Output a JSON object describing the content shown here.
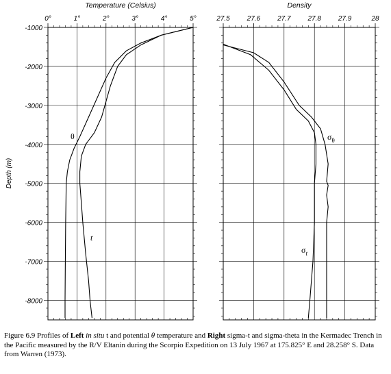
{
  "chart_data": [
    {
      "type": "line",
      "title": "Temperature (Celsius)",
      "xlabel": "Temperature (Celsius)",
      "ylabel": "Depth (m)",
      "xlim": [
        0,
        5
      ],
      "ylim": [
        -8500,
        -1000
      ],
      "x_ticks": [
        "0°",
        "1°",
        "2°",
        "3°",
        "4°",
        "5°"
      ],
      "y_ticks": [
        "-1000",
        "-2000",
        "-3000",
        "-4000",
        "-5000",
        "-6000",
        "-7000",
        "-8000"
      ],
      "series": [
        {
          "name": "t",
          "points": [
            [
              5.0,
              -1000
            ],
            [
              3.9,
              -1200
            ],
            [
              3.2,
              -1450
            ],
            [
              2.7,
              -1700
            ],
            [
              2.4,
              -2000
            ],
            [
              2.15,
              -2500
            ],
            [
              2.0,
              -2900
            ],
            [
              1.85,
              -3300
            ],
            [
              1.6,
              -3700
            ],
            [
              1.3,
              -4000
            ],
            [
              1.15,
              -4300
            ],
            [
              1.1,
              -4700
            ],
            [
              1.1,
              -5000
            ],
            [
              1.15,
              -5500
            ],
            [
              1.2,
              -6000
            ],
            [
              1.3,
              -6800
            ],
            [
              1.4,
              -7500
            ],
            [
              1.45,
              -8000
            ],
            [
              1.52,
              -8450
            ]
          ]
        },
        {
          "name": "θ",
          "points": [
            [
              5.0,
              -1000
            ],
            [
              3.9,
              -1200
            ],
            [
              3.2,
              -1400
            ],
            [
              2.7,
              -1600
            ],
            [
              2.3,
              -1900
            ],
            [
              2.0,
              -2300
            ],
            [
              1.7,
              -2800
            ],
            [
              1.4,
              -3300
            ],
            [
              1.1,
              -3800
            ],
            [
              0.9,
              -4100
            ],
            [
              0.75,
              -4400
            ],
            [
              0.67,
              -4700
            ],
            [
              0.63,
              -5000
            ],
            [
              0.62,
              -5500
            ],
            [
              0.61,
              -6000
            ],
            [
              0.6,
              -7000
            ],
            [
              0.59,
              -8000
            ],
            [
              0.59,
              -8450
            ]
          ]
        }
      ],
      "labels": [
        "θ",
        "t"
      ]
    },
    {
      "type": "line",
      "title": "Density",
      "xlabel": "Density",
      "xlim": [
        27.5,
        28.0
      ],
      "ylim": [
        -8500,
        -1000
      ],
      "x_ticks": [
        "27.5",
        "27.6",
        "27.7",
        "27.8",
        "27.9",
        "28"
      ],
      "series": [
        {
          "name": "σθ",
          "points": [
            [
              27.5,
              -1450
            ],
            [
              27.6,
              -1650
            ],
            [
              27.65,
              -1900
            ],
            [
              27.7,
              -2400
            ],
            [
              27.75,
              -3000
            ],
            [
              27.79,
              -3300
            ],
            [
              27.82,
              -3600
            ],
            [
              27.835,
              -4000
            ],
            [
              27.845,
              -4500
            ],
            [
              27.84,
              -4950
            ],
            [
              27.845,
              -5050
            ],
            [
              27.84,
              -5300
            ],
            [
              27.845,
              -5600
            ],
            [
              27.84,
              -6000
            ],
            [
              27.84,
              -7000
            ],
            [
              27.84,
              -8000
            ],
            [
              27.84,
              -8450
            ]
          ]
        },
        {
          "name": "σt",
          "points": [
            [
              27.5,
              -1430
            ],
            [
              27.59,
              -1700
            ],
            [
              27.65,
              -2100
            ],
            [
              27.7,
              -2600
            ],
            [
              27.74,
              -3100
            ],
            [
              27.78,
              -3400
            ],
            [
              27.8,
              -3700
            ],
            [
              27.805,
              -4000
            ],
            [
              27.805,
              -4500
            ],
            [
              27.8,
              -5000
            ],
            [
              27.8,
              -6000
            ],
            [
              27.795,
              -7000
            ],
            [
              27.785,
              -8000
            ],
            [
              27.78,
              -8450
            ]
          ]
        }
      ],
      "labels": [
        "σθ",
        "σt"
      ]
    }
  ],
  "caption": {
    "fig": "Figure 6.9 Profiles of ",
    "left_b": "Left",
    "in_situ": " in situ",
    "p1": " t and potential ",
    "theta": "θ",
    "p2": " temperature and ",
    "right_b": "Right",
    "p3": " sigma-t and sigma-theta in the Kermadec Trench in the Pacific measured by the R/V Eltanin during the Scorpio Expedition on 13 July 1967 at 175.825° E and 28.258° S. Data from Warren (1973)."
  }
}
